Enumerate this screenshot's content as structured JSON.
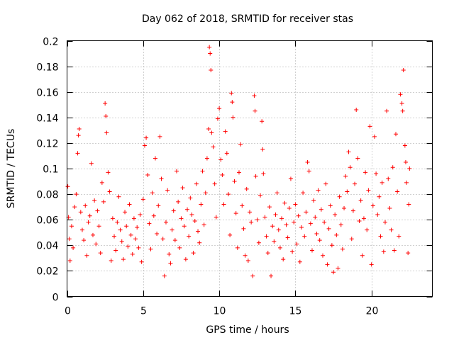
{
  "chart_data": {
    "type": "scatter",
    "title": "Day 062 of 2018, SRMTID for receiver stas",
    "xlabel": "GPS time / hours",
    "ylabel": "SRMTID / TECUs",
    "xlim": [
      0,
      24
    ],
    "ylim": [
      0,
      0.2
    ],
    "xticks": [
      0,
      5,
      10,
      15,
      20
    ],
    "xtick_labels": [
      "0",
      "5",
      "10",
      "15",
      "20"
    ],
    "yticks": [
      0,
      0.02,
      0.04,
      0.06,
      0.08,
      0.1,
      0.12,
      0.14,
      0.16,
      0.18,
      0.2
    ],
    "ytick_labels": [
      "0",
      "0.02",
      "0.04",
      "0.06",
      "0.08",
      "0.1",
      "0.12",
      "0.14",
      "0.16",
      "0.18",
      "0.2"
    ],
    "grid": true,
    "marker": "+",
    "color": "#ff0000",
    "series": [
      {
        "name": "stas",
        "points": [
          [
            0.05,
            0.086
          ],
          [
            0.1,
            0.062
          ],
          [
            0.15,
            0.045
          ],
          [
            0.2,
            0.028
          ],
          [
            0.3,
            0.055
          ],
          [
            0.4,
            0.038
          ],
          [
            0.5,
            0.07
          ],
          [
            0.6,
            0.08
          ],
          [
            0.7,
            0.112
          ],
          [
            0.75,
            0.126
          ],
          [
            0.8,
            0.131
          ],
          [
            0.9,
            0.066
          ],
          [
            1.0,
            0.052
          ],
          [
            1.1,
            0.044
          ],
          [
            1.2,
            0.071
          ],
          [
            1.3,
            0.032
          ],
          [
            1.4,
            0.058
          ],
          [
            1.5,
            0.063
          ],
          [
            1.6,
            0.104
          ],
          [
            1.7,
            0.048
          ],
          [
            1.8,
            0.075
          ],
          [
            1.9,
            0.041
          ],
          [
            2.0,
            0.067
          ],
          [
            2.1,
            0.055
          ],
          [
            2.2,
            0.034
          ],
          [
            2.3,
            0.089
          ],
          [
            2.4,
            0.074
          ],
          [
            2.5,
            0.151
          ],
          [
            2.55,
            0.141
          ],
          [
            2.6,
            0.128
          ],
          [
            2.7,
            0.097
          ],
          [
            2.8,
            0.082
          ],
          [
            2.9,
            0.028
          ],
          [
            3.0,
            0.061
          ],
          [
            3.1,
            0.047
          ],
          [
            3.2,
            0.036
          ],
          [
            3.3,
            0.058
          ],
          [
            3.4,
            0.078
          ],
          [
            3.5,
            0.052
          ],
          [
            3.6,
            0.043
          ],
          [
            3.7,
            0.029
          ],
          [
            3.8,
            0.066
          ],
          [
            3.9,
            0.055
          ],
          [
            4.0,
            0.039
          ],
          [
            4.1,
            0.072
          ],
          [
            4.2,
            0.048
          ],
          [
            4.3,
            0.033
          ],
          [
            4.4,
            0.061
          ],
          [
            4.5,
            0.045
          ],
          [
            4.6,
            0.054
          ],
          [
            4.7,
            0.038
          ],
          [
            4.8,
            0.064
          ],
          [
            4.9,
            0.027
          ],
          [
            5.0,
            0.076
          ],
          [
            5.1,
            0.118
          ],
          [
            5.2,
            0.124
          ],
          [
            5.3,
            0.095
          ],
          [
            5.4,
            0.057
          ],
          [
            5.5,
            0.037
          ],
          [
            5.6,
            0.081
          ],
          [
            5.7,
            0.063
          ],
          [
            5.8,
            0.108
          ],
          [
            5.9,
            0.049
          ],
          [
            6.0,
            0.071
          ],
          [
            6.1,
            0.125
          ],
          [
            6.2,
            0.092
          ],
          [
            6.3,
            0.045
          ],
          [
            6.4,
            0.016
          ],
          [
            6.5,
            0.058
          ],
          [
            6.6,
            0.083
          ],
          [
            6.7,
            0.033
          ],
          [
            6.8,
            0.026
          ],
          [
            6.9,
            0.052
          ],
          [
            7.0,
            0.067
          ],
          [
            7.1,
            0.044
          ],
          [
            7.2,
            0.098
          ],
          [
            7.3,
            0.074
          ],
          [
            7.4,
            0.038
          ],
          [
            7.5,
            0.061
          ],
          [
            7.6,
            0.085
          ],
          [
            7.7,
            0.055
          ],
          [
            7.8,
            0.029
          ],
          [
            7.9,
            0.068
          ],
          [
            8.0,
            0.047
          ],
          [
            8.1,
            0.077
          ],
          [
            8.2,
            0.064
          ],
          [
            8.3,
            0.034
          ],
          [
            8.4,
            0.059
          ],
          [
            8.5,
            0.088
          ],
          [
            8.6,
            0.051
          ],
          [
            8.7,
            0.042
          ],
          [
            8.8,
            0.072
          ],
          [
            8.9,
            0.098
          ],
          [
            9.0,
            0.056
          ],
          [
            9.1,
            0.081
          ],
          [
            9.2,
            0.108
          ],
          [
            9.3,
            0.131
          ],
          [
            9.35,
            0.195
          ],
          [
            9.4,
            0.19
          ],
          [
            9.45,
            0.177
          ],
          [
            9.5,
            0.128
          ],
          [
            9.6,
            0.117
          ],
          [
            9.7,
            0.088
          ],
          [
            9.8,
            0.062
          ],
          [
            9.9,
            0.139
          ],
          [
            10.0,
            0.147
          ],
          [
            10.1,
            0.107
          ],
          [
            10.2,
            0.095
          ],
          [
            10.3,
            0.072
          ],
          [
            10.4,
            0.129
          ],
          [
            10.5,
            0.112
          ],
          [
            10.6,
            0.08
          ],
          [
            10.7,
            0.048
          ],
          [
            10.8,
            0.159
          ],
          [
            10.85,
            0.152
          ],
          [
            10.9,
            0.14
          ],
          [
            11.0,
            0.09
          ],
          [
            11.1,
            0.065
          ],
          [
            11.2,
            0.038
          ],
          [
            11.3,
            0.097
          ],
          [
            11.4,
            0.119
          ],
          [
            11.5,
            0.071
          ],
          [
            11.6,
            0.053
          ],
          [
            11.7,
            0.032
          ],
          [
            11.8,
            0.084
          ],
          [
            11.9,
            0.028
          ],
          [
            12.0,
            0.066
          ],
          [
            12.1,
            0.058
          ],
          [
            12.2,
            0.016
          ],
          [
            12.3,
            0.157
          ],
          [
            12.35,
            0.145
          ],
          [
            12.4,
            0.094
          ],
          [
            12.5,
            0.06
          ],
          [
            12.6,
            0.042
          ],
          [
            12.7,
            0.079
          ],
          [
            12.8,
            0.137
          ],
          [
            12.85,
            0.115
          ],
          [
            12.9,
            0.096
          ],
          [
            13.0,
            0.062
          ],
          [
            13.1,
            0.047
          ],
          [
            13.2,
            0.034
          ],
          [
            13.3,
            0.07
          ],
          [
            13.4,
            0.016
          ],
          [
            13.5,
            0.055
          ],
          [
            13.6,
            0.043
          ],
          [
            13.7,
            0.064
          ],
          [
            13.8,
            0.081
          ],
          [
            13.9,
            0.052
          ],
          [
            14.0,
            0.038
          ],
          [
            14.1,
            0.061
          ],
          [
            14.2,
            0.029
          ],
          [
            14.3,
            0.073
          ],
          [
            14.4,
            0.056
          ],
          [
            14.5,
            0.046
          ],
          [
            14.6,
            0.069
          ],
          [
            14.7,
            0.092
          ],
          [
            14.8,
            0.035
          ],
          [
            14.9,
            0.058
          ],
          [
            15.0,
            0.072
          ],
          [
            15.1,
            0.041
          ],
          [
            15.2,
            0.063
          ],
          [
            15.3,
            0.027
          ],
          [
            15.4,
            0.054
          ],
          [
            15.5,
            0.081
          ],
          [
            15.6,
            0.047
          ],
          [
            15.7,
            0.066
          ],
          [
            15.8,
            0.105
          ],
          [
            15.9,
            0.098
          ],
          [
            16.0,
            0.057
          ],
          [
            16.1,
            0.036
          ],
          [
            16.2,
            0.075
          ],
          [
            16.3,
            0.062
          ],
          [
            16.4,
            0.049
          ],
          [
            16.5,
            0.083
          ],
          [
            16.6,
            0.044
          ],
          [
            16.7,
            0.068
          ],
          [
            16.8,
            0.032
          ],
          [
            16.9,
            0.058
          ],
          [
            17.0,
            0.088
          ],
          [
            17.1,
            0.025
          ],
          [
            17.2,
            0.053
          ],
          [
            17.3,
            0.071
          ],
          [
            17.4,
            0.04
          ],
          [
            17.5,
            0.019
          ],
          [
            17.6,
            0.064
          ],
          [
            17.7,
            0.048
          ],
          [
            17.8,
            0.022
          ],
          [
            17.9,
            0.078
          ],
          [
            18.0,
            0.056
          ],
          [
            18.1,
            0.037
          ],
          [
            18.2,
            0.069
          ],
          [
            18.3,
            0.094
          ],
          [
            18.4,
            0.082
          ],
          [
            18.5,
            0.113
          ],
          [
            18.6,
            0.101
          ],
          [
            18.7,
            0.045
          ],
          [
            18.8,
            0.067
          ],
          [
            18.9,
            0.088
          ],
          [
            19.0,
            0.146
          ],
          [
            19.1,
            0.108
          ],
          [
            19.2,
            0.059
          ],
          [
            19.3,
            0.075
          ],
          [
            19.4,
            0.032
          ],
          [
            19.5,
            0.061
          ],
          [
            19.6,
            0.097
          ],
          [
            19.7,
            0.052
          ],
          [
            19.8,
            0.083
          ],
          [
            19.9,
            0.133
          ],
          [
            20.0,
            0.025
          ],
          [
            20.1,
            0.071
          ],
          [
            20.2,
            0.125
          ],
          [
            20.3,
            0.096
          ],
          [
            20.4,
            0.064
          ],
          [
            20.5,
            0.078
          ],
          [
            20.6,
            0.047
          ],
          [
            20.7,
            0.089
          ],
          [
            20.8,
            0.035
          ],
          [
            20.9,
            0.058
          ],
          [
            21.0,
            0.145
          ],
          [
            21.1,
            0.092
          ],
          [
            21.2,
            0.069
          ],
          [
            21.3,
            0.052
          ],
          [
            21.4,
            0.101
          ],
          [
            21.5,
            0.036
          ],
          [
            21.6,
            0.127
          ],
          [
            21.7,
            0.082
          ],
          [
            21.8,
            0.047
          ],
          [
            21.9,
            0.158
          ],
          [
            22.0,
            0.151
          ],
          [
            22.05,
            0.145
          ],
          [
            22.1,
            0.177
          ],
          [
            22.2,
            0.118
          ],
          [
            22.25,
            0.105
          ],
          [
            22.3,
            0.089
          ],
          [
            22.4,
            0.034
          ],
          [
            22.45,
            0.072
          ],
          [
            22.5,
            0.1
          ]
        ]
      }
    ]
  }
}
